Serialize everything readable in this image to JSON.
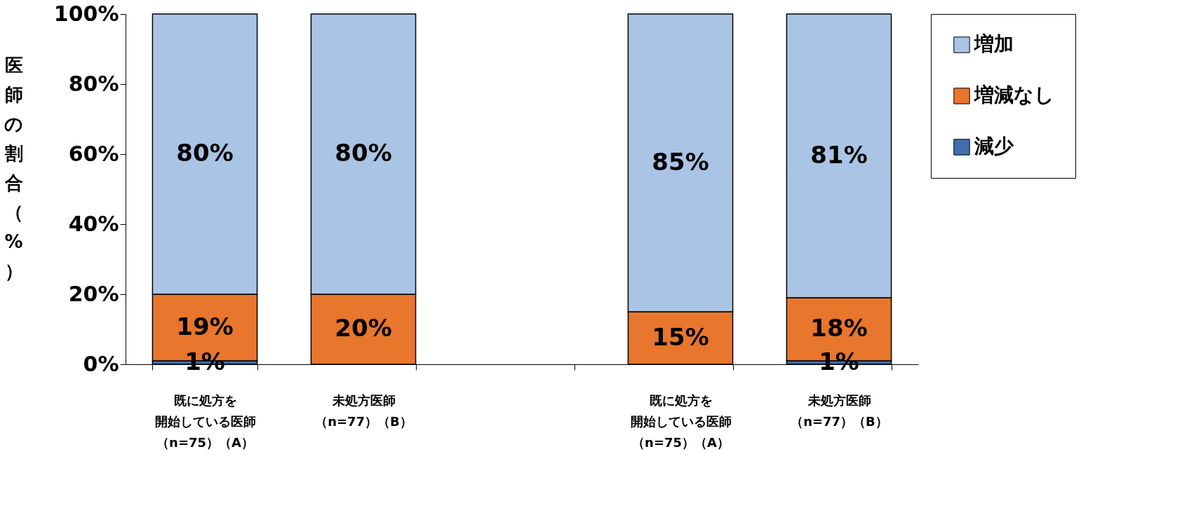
{
  "chart_data": {
    "type": "bar",
    "stacked": true,
    "ylabel": "医師の割合（%）",
    "categories": [
      "既に処方を開始している医師（n=75）（A）",
      "未処方医師（n=77）（B）",
      null,
      "既に処方を開始している医師（n=75）（A）",
      "未処方医師（n=77）（B）"
    ],
    "series": [
      {
        "name": "減少",
        "color": "#3f6fad",
        "values": [
          1,
          0,
          null,
          0,
          1
        ],
        "value_labels": [
          "1%",
          null,
          null,
          null,
          "1%"
        ]
      },
      {
        "name": "増減なし",
        "color": "#e8762c",
        "values": [
          19,
          20,
          null,
          15,
          18
        ],
        "value_labels": [
          "19%",
          "20%",
          null,
          "15%",
          "18%"
        ]
      },
      {
        "name": "増加",
        "color": "#a9c4e4",
        "values": [
          80,
          80,
          null,
          85,
          81
        ],
        "value_labels": [
          "80%",
          "80%",
          null,
          "85%",
          "81%"
        ]
      }
    ],
    "ylim": [
      0,
      100
    ],
    "yticks": [
      {
        "value": 0,
        "label": "0%"
      },
      {
        "value": 20,
        "label": "20%"
      },
      {
        "value": 40,
        "label": "40%"
      },
      {
        "value": 60,
        "label": "60%"
      },
      {
        "value": 80,
        "label": "80%"
      },
      {
        "value": 100,
        "label": "100%"
      }
    ],
    "grid": false,
    "legend": "right"
  }
}
